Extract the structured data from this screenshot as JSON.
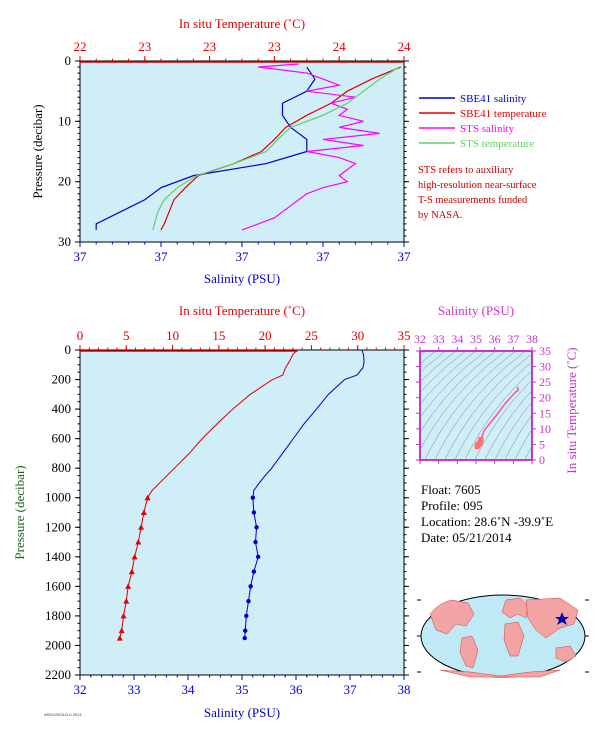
{
  "colors": {
    "plot_bg": "#cfeef7",
    "salinity": "#0000cc",
    "temperature": "#e00000",
    "sts_salinity": "#ff00ff",
    "sts_temperature": "#66cc66",
    "ts_panel": "#cc33cc",
    "pressure_label": "#1a661a"
  },
  "top_panel": {
    "temp_axis_label": "In situ Temperature (˚C)",
    "temp_ticks": [
      "22",
      "23",
      "23",
      "23",
      "24",
      "24"
    ],
    "sal_axis_label": "Salinity (PSU)",
    "sal_ticks": [
      "37",
      "37",
      "37",
      "37",
      "37"
    ],
    "pressure_label": "Pressure (decibar)",
    "pressure_ticks": [
      "0",
      "10",
      "20",
      "30"
    ],
    "legend": [
      {
        "label": "SBE41 salinity",
        "color": "#0000cc"
      },
      {
        "label": "SBE41 temperature",
        "color": "#e00000"
      },
      {
        "label": "STS salinity",
        "color": "#ff00ff"
      },
      {
        "label": "STS temperature",
        "color": "#66cc66"
      }
    ],
    "note_lines": [
      "STS refers to auxiliary",
      "high-resolution near-surface",
      "T-S measurements funded",
      "by NASA."
    ]
  },
  "bottom_panel": {
    "temp_axis_label": "In situ Temperature (˚C)",
    "temp_ticks": [
      "0",
      "5",
      "10",
      "15",
      "20",
      "25",
      "30",
      "35"
    ],
    "sal_axis_label": "Salinity (PSU)",
    "sal_ticks": [
      "32",
      "33",
      "34",
      "35",
      "36",
      "37",
      "38"
    ],
    "pressure_label": "Pressure (decibar)",
    "pressure_ticks": [
      "0",
      "200",
      "400",
      "600",
      "800",
      "1000",
      "1200",
      "1400",
      "1600",
      "1800",
      "2000",
      "2200"
    ]
  },
  "ts_panel": {
    "sal_axis_label": "Salinity (PSU)",
    "sal_ticks": [
      "32",
      "33",
      "34",
      "35",
      "36",
      "37",
      "38"
    ],
    "temp_axis_label": "In situ Temperature (˚C)",
    "temp_ticks": [
      "0",
      "5",
      "10",
      "15",
      "20",
      "25",
      "30",
      "35"
    ]
  },
  "info": {
    "float": "Float:  7605",
    "profile": "Profile:  095",
    "location": "Location:  28.6˚N  -39.9˚E",
    "date": "Date:  05/21/2014"
  },
  "footer_text": "ARGO/SOLO-II 2014",
  "chart_data": [
    {
      "type": "line",
      "title": "",
      "xlabel": "Salinity (PSU)",
      "x2label": "In situ Temperature (˚C)",
      "ylabel": "Pressure (decibar)",
      "xlim_temperature": [
        22,
        24
      ],
      "xlim_salinity": [
        36.9,
        37.3
      ],
      "ylim": [
        30,
        0
      ],
      "series": [
        {
          "name": "SBE41 salinity",
          "axis": "salinity",
          "pressure": [
            1,
            3,
            5,
            7,
            9,
            11,
            13,
            15,
            17,
            19,
            21,
            23,
            25,
            27,
            28
          ],
          "values": [
            37.18,
            37.19,
            37.18,
            37.15,
            37.15,
            37.16,
            37.18,
            37.18,
            37.13,
            37.04,
            37.0,
            36.98,
            36.95,
            36.92,
            36.92
          ]
        },
        {
          "name": "SBE41 temperature",
          "axis": "temperature",
          "pressure": [
            1,
            3,
            5,
            7,
            9,
            11,
            13,
            15,
            17,
            19,
            21,
            23,
            25,
            27,
            28
          ],
          "values": [
            23.98,
            23.8,
            23.65,
            23.55,
            23.4,
            23.27,
            23.2,
            23.12,
            22.95,
            22.73,
            22.65,
            22.58,
            22.55,
            22.52,
            22.5
          ]
        },
        {
          "name": "STS salinity",
          "axis": "salinity",
          "pressure": [
            0.5,
            1,
            2,
            3,
            4,
            5,
            6,
            7,
            8,
            9,
            10,
            11,
            12,
            13,
            14,
            15,
            16,
            17,
            18,
            19,
            20,
            21,
            22,
            23,
            24,
            25,
            26,
            27,
            28
          ],
          "values": [
            37.17,
            37.12,
            37.18,
            37.2,
            37.22,
            37.18,
            37.24,
            37.21,
            37.23,
            37.22,
            37.25,
            37.22,
            37.27,
            37.2,
            37.25,
            37.18,
            37.22,
            37.24,
            37.23,
            37.22,
            37.23,
            37.2,
            37.18,
            37.17,
            37.16,
            37.15,
            37.14,
            37.12,
            37.1
          ]
        },
        {
          "name": "STS temperature",
          "axis": "temperature",
          "pressure": [
            1,
            3,
            5,
            7,
            9,
            11,
            13,
            15,
            17,
            19,
            21,
            23,
            25,
            27,
            28
          ],
          "values": [
            23.97,
            23.85,
            23.75,
            23.65,
            23.5,
            23.3,
            23.22,
            23.15,
            22.95,
            22.72,
            22.6,
            22.52,
            22.48,
            22.46,
            22.45
          ]
        }
      ]
    },
    {
      "type": "line",
      "title": "",
      "xlabel": "Salinity (PSU)",
      "x2label": "In situ Temperature (˚C)",
      "ylabel": "Pressure (decibar)",
      "xlim_temperature": [
        0,
        35
      ],
      "xlim_salinity": [
        32,
        38
      ],
      "ylim": [
        2200,
        0
      ],
      "series": [
        {
          "name": "SBE41 temperature",
          "axis": "temperature",
          "pressure": [
            0,
            30,
            80,
            120,
            170,
            200,
            300,
            400,
            500,
            600,
            700,
            800,
            850,
            900,
            950,
            1000,
            1100,
            1200,
            1300,
            1400,
            1500,
            1600,
            1700,
            1800,
            1900,
            1950
          ],
          "values": [
            23.5,
            23.0,
            22.6,
            22.2,
            21.9,
            20.8,
            18.4,
            16.5,
            14.8,
            13.2,
            11.8,
            10.2,
            9.4,
            8.6,
            7.8,
            7.3,
            6.9,
            6.6,
            6.3,
            5.9,
            5.6,
            5.2,
            5.0,
            4.7,
            4.5,
            4.3
          ]
        },
        {
          "name": "SBE41 salinity",
          "axis": "salinity",
          "pressure": [
            0,
            30,
            80,
            120,
            170,
            200,
            300,
            400,
            500,
            600,
            700,
            800,
            850,
            900,
            950,
            1000,
            1100,
            1200,
            1300,
            1400,
            1500,
            1600,
            1700,
            1800,
            1900,
            1950
          ],
          "values": [
            37.22,
            37.25,
            37.26,
            37.24,
            37.13,
            36.9,
            36.6,
            36.38,
            36.15,
            35.95,
            35.75,
            35.55,
            35.43,
            35.32,
            35.22,
            35.2,
            35.22,
            35.27,
            35.25,
            35.3,
            35.22,
            35.16,
            35.12,
            35.08,
            35.06,
            35.05
          ]
        }
      ]
    },
    {
      "type": "scatter",
      "title": "",
      "xlabel": "Salinity (PSU)",
      "ylabel": "In situ Temperature (˚C)",
      "xlim": [
        32,
        38
      ],
      "ylim": [
        0,
        35
      ],
      "series": [
        {
          "name": "",
          "x": [
            35.05,
            35.08,
            35.12,
            35.16,
            35.22,
            35.25,
            35.27,
            35.43,
            35.75,
            36.15,
            36.6,
            37.13,
            37.24,
            37.26,
            37.22
          ],
          "y": [
            4.3,
            4.7,
            5.0,
            5.2,
            5.6,
            6.3,
            6.6,
            9.4,
            11.8,
            14.8,
            18.4,
            21.9,
            22.2,
            22.6,
            23.5
          ]
        }
      ]
    }
  ]
}
